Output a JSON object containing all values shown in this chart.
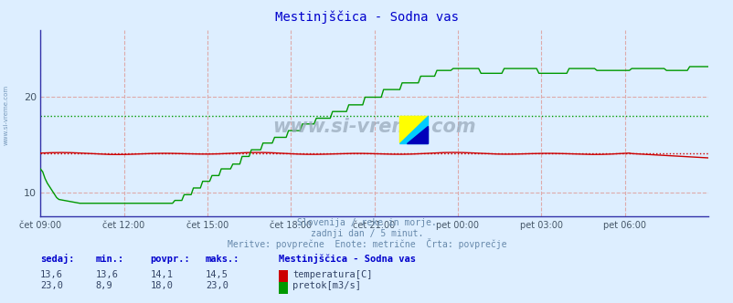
{
  "title": "Mestinjščica - Sodna vas",
  "bg_color": "#ddeeff",
  "plot_bg_color": "#ddeeff",
  "x_labels": [
    "čet 09:00",
    "čet 12:00",
    "čet 15:00",
    "čet 18:00",
    "čet 21:00",
    "pet 00:00",
    "pet 03:00",
    "pet 06:00"
  ],
  "x_ticks_norm": [
    0.0,
    0.125,
    0.25,
    0.375,
    0.5,
    0.625,
    0.75,
    0.875
  ],
  "n_points": 289,
  "ylim": [
    7.5,
    27.0
  ],
  "yticks": [
    10,
    20
  ],
  "temp_color": "#cc0000",
  "flow_color": "#009900",
  "grid_color": "#ddaaaa",
  "temp_avg": 14.1,
  "flow_avg": 18.0,
  "temp_min": 13.6,
  "temp_max": 14.5,
  "temp_now": "13,6",
  "flow_min": "8,9",
  "flow_max": "23,0",
  "flow_now": "23,0",
  "temp_now_f": "13,6",
  "temp_min_f": "13,6",
  "temp_avg_f": "14,1",
  "temp_max_f": "14,5",
  "flow_now_f": "23,0",
  "flow_min_f": "8,9",
  "flow_avg_f": "18,0",
  "flow_max_f": "23,0",
  "footer_line1": "Slovenija / reke in morje.",
  "footer_line2": "zadnji dan / 5 minut.",
  "footer_line3": "Meritve: povprečne  Enote: metrične  Črta: povprečje",
  "label_sedaj": "sedaj:",
  "label_min": "min.:",
  "label_povpr": "povpr.:",
  "label_maks": "maks.:",
  "legend_title": "Mestinjščica - Sodna vas",
  "legend_temp": "temperatura[C]",
  "legend_flow": "pretok[m3/s]",
  "watermark": "www.si-vreme.com",
  "sidebar_text": "www.si-vreme.com",
  "title_color": "#0000cc",
  "text_color": "#6688aa",
  "label_color": "#0000cc",
  "value_color": "#334466"
}
